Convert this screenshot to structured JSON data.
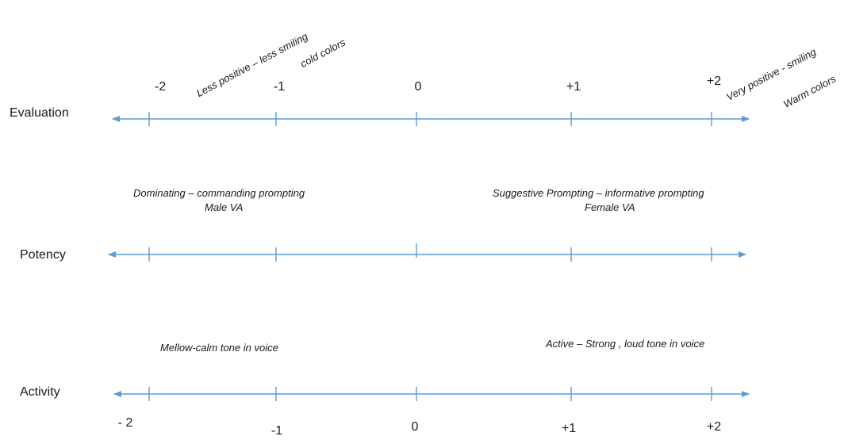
{
  "evaluation": {
    "label": "Evaluation",
    "ticks": [
      "-2",
      "-1",
      "0",
      "+1",
      "+2"
    ],
    "left_annotation": "Less positive – less smiling",
    "left_annotation_2": "cold colors",
    "right_annotation": "Very positive - smiling",
    "right_annotation_2": "Warm colors"
  },
  "potency": {
    "label": "Potency",
    "left_annotation_line1": "Dominating – commanding prompting",
    "left_annotation_line2": "Male VA",
    "right_annotation_line1": "Suggestive Prompting – informative prompting",
    "right_annotation_line2": "Female VA"
  },
  "activity": {
    "label": "Activity",
    "ticks": [
      "- 2",
      "-1",
      "0",
      "+1",
      "+2"
    ],
    "left_annotation": "Mellow-calm tone in voice",
    "right_annotation": "Active – Strong , loud tone in voice"
  },
  "colors": {
    "axis": "#5b9bd5",
    "text": "#1a1a1a"
  }
}
